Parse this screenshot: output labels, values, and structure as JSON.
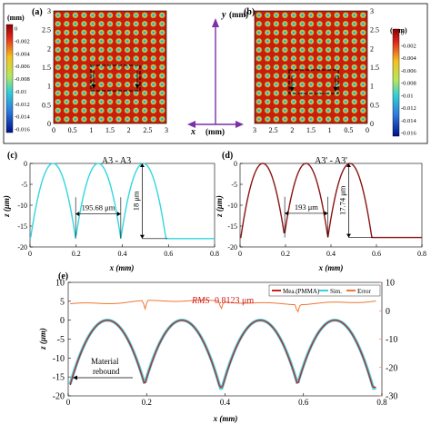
{
  "panels": {
    "a": {
      "tag": "(a)",
      "colorbar_title": "(mm)",
      "colorbar_ticks": [
        "0",
        "-0.002",
        "-0.004",
        "-0.006",
        "-0.008",
        "-0.01",
        "-0.012",
        "-0.014",
        "-0.016"
      ],
      "x_ticks": [
        "0",
        "0.5",
        "1",
        "1.5",
        "2",
        "2.5",
        "3"
      ],
      "y_ticks": [
        "0",
        "0.5",
        "1",
        "1.5",
        "2",
        "2.5",
        "3"
      ],
      "grid_n": 13,
      "colors": {
        "background": "#c81e0e",
        "dimple_edge": "#e8c41a",
        "dimple_mid": "#5fd3b6",
        "dimple_core": "#2d7ad0"
      }
    },
    "b": {
      "tag": "(b)",
      "colorbar_title": "(mm)",
      "colorbar_ticks": [
        "0",
        "-0.002",
        "-0.004",
        "-0.006",
        "-0.008",
        "-0.01",
        "-0.012",
        "-0.014",
        "-0.016"
      ],
      "x_ticks": [
        "3",
        "2.5",
        "2",
        "1.5",
        "1",
        "0.5",
        "0"
      ],
      "y_ticks": [
        "0",
        "0.5",
        "1",
        "1.5",
        "2",
        "2.5",
        "3"
      ],
      "grid_n": 13
    },
    "axes_icon": {
      "y_label": "y",
      "y_unit": "(mm)",
      "x_label": "x",
      "x_unit": "(mm)",
      "color": "#7b2fa8"
    }
  },
  "chart_data": [
    {
      "id": "c",
      "type": "line",
      "tag": "(c)",
      "title": "A3 - A3",
      "xlabel": "x (mm)",
      "ylabel": "z (μm)",
      "xlim": [
        0,
        0.8
      ],
      "ylim": [
        -20,
        0
      ],
      "x_ticks": [
        "0",
        "0.2",
        "0.4",
        "0.6",
        "0.8"
      ],
      "y_ticks": [
        "0",
        "-5",
        "-10",
        "-15",
        "-20"
      ],
      "series": [
        {
          "color": "#33d6e0",
          "peaks": [
            0.1,
            0.2957,
            0.4913
          ],
          "half_width": 0.0978,
          "depth": 18
        }
      ],
      "annotations": [
        "195.68 μm",
        "18 μm"
      ]
    },
    {
      "id": "d",
      "type": "line",
      "tag": "(d)",
      "title": "A3' - A3'",
      "xlabel": "x (mm)",
      "ylabel": "z (μm)",
      "xlim": [
        0,
        0.8
      ],
      "ylim": [
        -20,
        0
      ],
      "x_ticks": [
        "0",
        "0.2",
        "0.4",
        "0.6",
        "0.8"
      ],
      "y_ticks": [
        "0",
        "-5",
        "-10",
        "-15",
        "-20"
      ],
      "series": [
        {
          "color": "#8b1414",
          "peaks": [
            0.1,
            0.29,
            0.483
          ],
          "half_width": 0.0965,
          "depth": 17.74
        }
      ],
      "annotations": [
        "193 μm",
        "17.74 μm"
      ]
    },
    {
      "id": "e",
      "type": "line",
      "tag": "(e)",
      "xlabel": "x (mm)",
      "ylabel": "z (μm)",
      "y2label": "",
      "xlim": [
        0,
        0.8
      ],
      "ylim": [
        -20,
        10
      ],
      "y2lim": [
        -30,
        10
      ],
      "x_ticks": [
        "0",
        "0.2",
        "0.4",
        "0.6",
        "0.8"
      ],
      "y_ticks": [
        "10",
        "5",
        "0",
        "-5",
        "-10",
        "-15",
        "-20"
      ],
      "y2_ticks": [
        "10",
        "0",
        "-10",
        "-20",
        "-30"
      ],
      "legend": [
        "Mea.(PMMA)",
        "Sim.",
        "Error"
      ],
      "legend_position": "top-right",
      "rms_label": "RMS",
      "rms_value": "0.8123 μm",
      "annotation": [
        "Material",
        "rebound"
      ],
      "series": [
        {
          "name": "Mea.(PMMA)",
          "color": "#c8221e",
          "peaks": [
            0.1,
            0.29,
            0.49,
            0.68
          ],
          "depth": 17.7
        },
        {
          "name": "Sim.",
          "color": "#3fd0e0",
          "peaks": [
            0.1,
            0.29,
            0.49,
            0.68
          ],
          "depth": 18
        },
        {
          "name": "Error",
          "color": "#ee7733",
          "axis": "right",
          "baseline": 3
        }
      ]
    }
  ]
}
